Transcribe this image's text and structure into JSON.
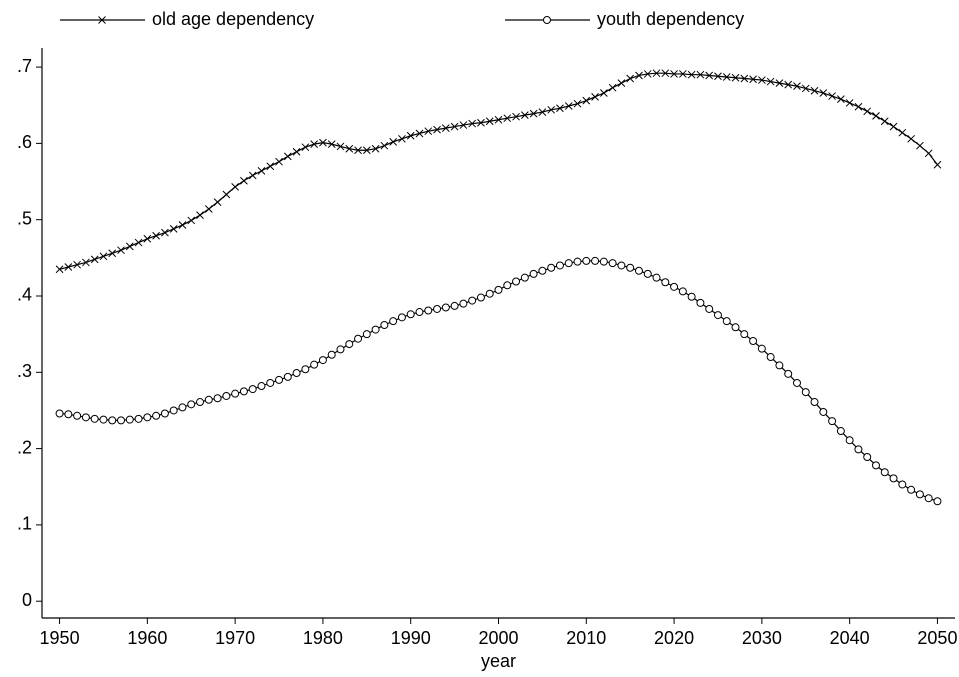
{
  "chart_data": {
    "type": "line",
    "x": [
      1950,
      1951,
      1952,
      1953,
      1954,
      1955,
      1956,
      1957,
      1958,
      1959,
      1960,
      1961,
      1962,
      1963,
      1964,
      1965,
      1966,
      1967,
      1968,
      1969,
      1970,
      1971,
      1972,
      1973,
      1974,
      1975,
      1976,
      1977,
      1978,
      1979,
      1980,
      1981,
      1982,
      1983,
      1984,
      1985,
      1986,
      1987,
      1988,
      1989,
      1990,
      1991,
      1992,
      1993,
      1994,
      1995,
      1996,
      1997,
      1998,
      1999,
      2000,
      2001,
      2002,
      2003,
      2004,
      2005,
      2006,
      2007,
      2008,
      2009,
      2010,
      2011,
      2012,
      2013,
      2014,
      2015,
      2016,
      2017,
      2018,
      2019,
      2020,
      2021,
      2022,
      2023,
      2024,
      2025,
      2026,
      2027,
      2028,
      2029,
      2030,
      2031,
      2032,
      2033,
      2034,
      2035,
      2036,
      2037,
      2038,
      2039,
      2040,
      2041,
      2042,
      2043,
      2044,
      2045,
      2046,
      2047,
      2048,
      2049,
      2050
    ],
    "series": [
      {
        "name": "old age dependency",
        "color": "#000000",
        "marker": "x",
        "values": [
          0.435,
          0.438,
          0.441,
          0.444,
          0.448,
          0.452,
          0.456,
          0.46,
          0.465,
          0.47,
          0.475,
          0.479,
          0.483,
          0.488,
          0.493,
          0.499,
          0.506,
          0.514,
          0.523,
          0.533,
          0.543,
          0.551,
          0.558,
          0.564,
          0.57,
          0.576,
          0.583,
          0.589,
          0.595,
          0.599,
          0.601,
          0.599,
          0.596,
          0.593,
          0.591,
          0.591,
          0.593,
          0.597,
          0.602,
          0.606,
          0.61,
          0.613,
          0.616,
          0.618,
          0.62,
          0.622,
          0.624,
          0.626,
          0.627,
          0.629,
          0.631,
          0.633,
          0.635,
          0.637,
          0.639,
          0.641,
          0.644,
          0.646,
          0.649,
          0.652,
          0.656,
          0.661,
          0.666,
          0.673,
          0.679,
          0.685,
          0.689,
          0.691,
          0.692,
          0.692,
          0.691,
          0.691,
          0.69,
          0.69,
          0.689,
          0.688,
          0.687,
          0.686,
          0.685,
          0.684,
          0.683,
          0.681,
          0.679,
          0.677,
          0.675,
          0.672,
          0.669,
          0.666,
          0.662,
          0.658,
          0.653,
          0.648,
          0.642,
          0.636,
          0.629,
          0.622,
          0.614,
          0.606,
          0.597,
          0.587,
          0.572
        ]
      },
      {
        "name": "youth dependency",
        "color": "#000000",
        "marker": "circle",
        "values": [
          0.246,
          0.245,
          0.243,
          0.241,
          0.239,
          0.238,
          0.237,
          0.237,
          0.238,
          0.239,
          0.241,
          0.243,
          0.246,
          0.25,
          0.254,
          0.258,
          0.261,
          0.264,
          0.266,
          0.269,
          0.272,
          0.275,
          0.278,
          0.282,
          0.286,
          0.29,
          0.294,
          0.299,
          0.304,
          0.31,
          0.316,
          0.323,
          0.33,
          0.337,
          0.344,
          0.35,
          0.356,
          0.362,
          0.367,
          0.372,
          0.376,
          0.379,
          0.381,
          0.383,
          0.385,
          0.387,
          0.39,
          0.394,
          0.398,
          0.403,
          0.408,
          0.414,
          0.419,
          0.424,
          0.429,
          0.433,
          0.437,
          0.44,
          0.443,
          0.445,
          0.446,
          0.446,
          0.445,
          0.443,
          0.44,
          0.437,
          0.433,
          0.429,
          0.424,
          0.418,
          0.412,
          0.406,
          0.399,
          0.391,
          0.383,
          0.375,
          0.367,
          0.359,
          0.35,
          0.341,
          0.331,
          0.32,
          0.309,
          0.298,
          0.286,
          0.274,
          0.261,
          0.248,
          0.236,
          0.223,
          0.211,
          0.199,
          0.189,
          0.178,
          0.169,
          0.161,
          0.153,
          0.146,
          0.14,
          0.135,
          0.131
        ]
      }
    ],
    "x_label": "year",
    "xlim": [
      1948,
      2052
    ],
    "xticks": [
      1950,
      1960,
      1970,
      1980,
      1990,
      2000,
      2010,
      2020,
      2030,
      2040,
      2050
    ],
    "ylim": [
      -0.022,
      0.725
    ],
    "yticks": [
      0,
      {
        "value": 0.1,
        "label": ".1"
      },
      {
        "value": 0.2,
        "label": ".2"
      },
      {
        "value": 0.3,
        "label": ".3"
      },
      {
        "value": 0.4,
        "label": ".4"
      },
      {
        "value": 0.5,
        "label": ".5"
      },
      {
        "value": 0.6,
        "label": ".6"
      },
      {
        "value": 0.7,
        "label": ".7"
      }
    ],
    "grid": false,
    "legend": "top"
  }
}
